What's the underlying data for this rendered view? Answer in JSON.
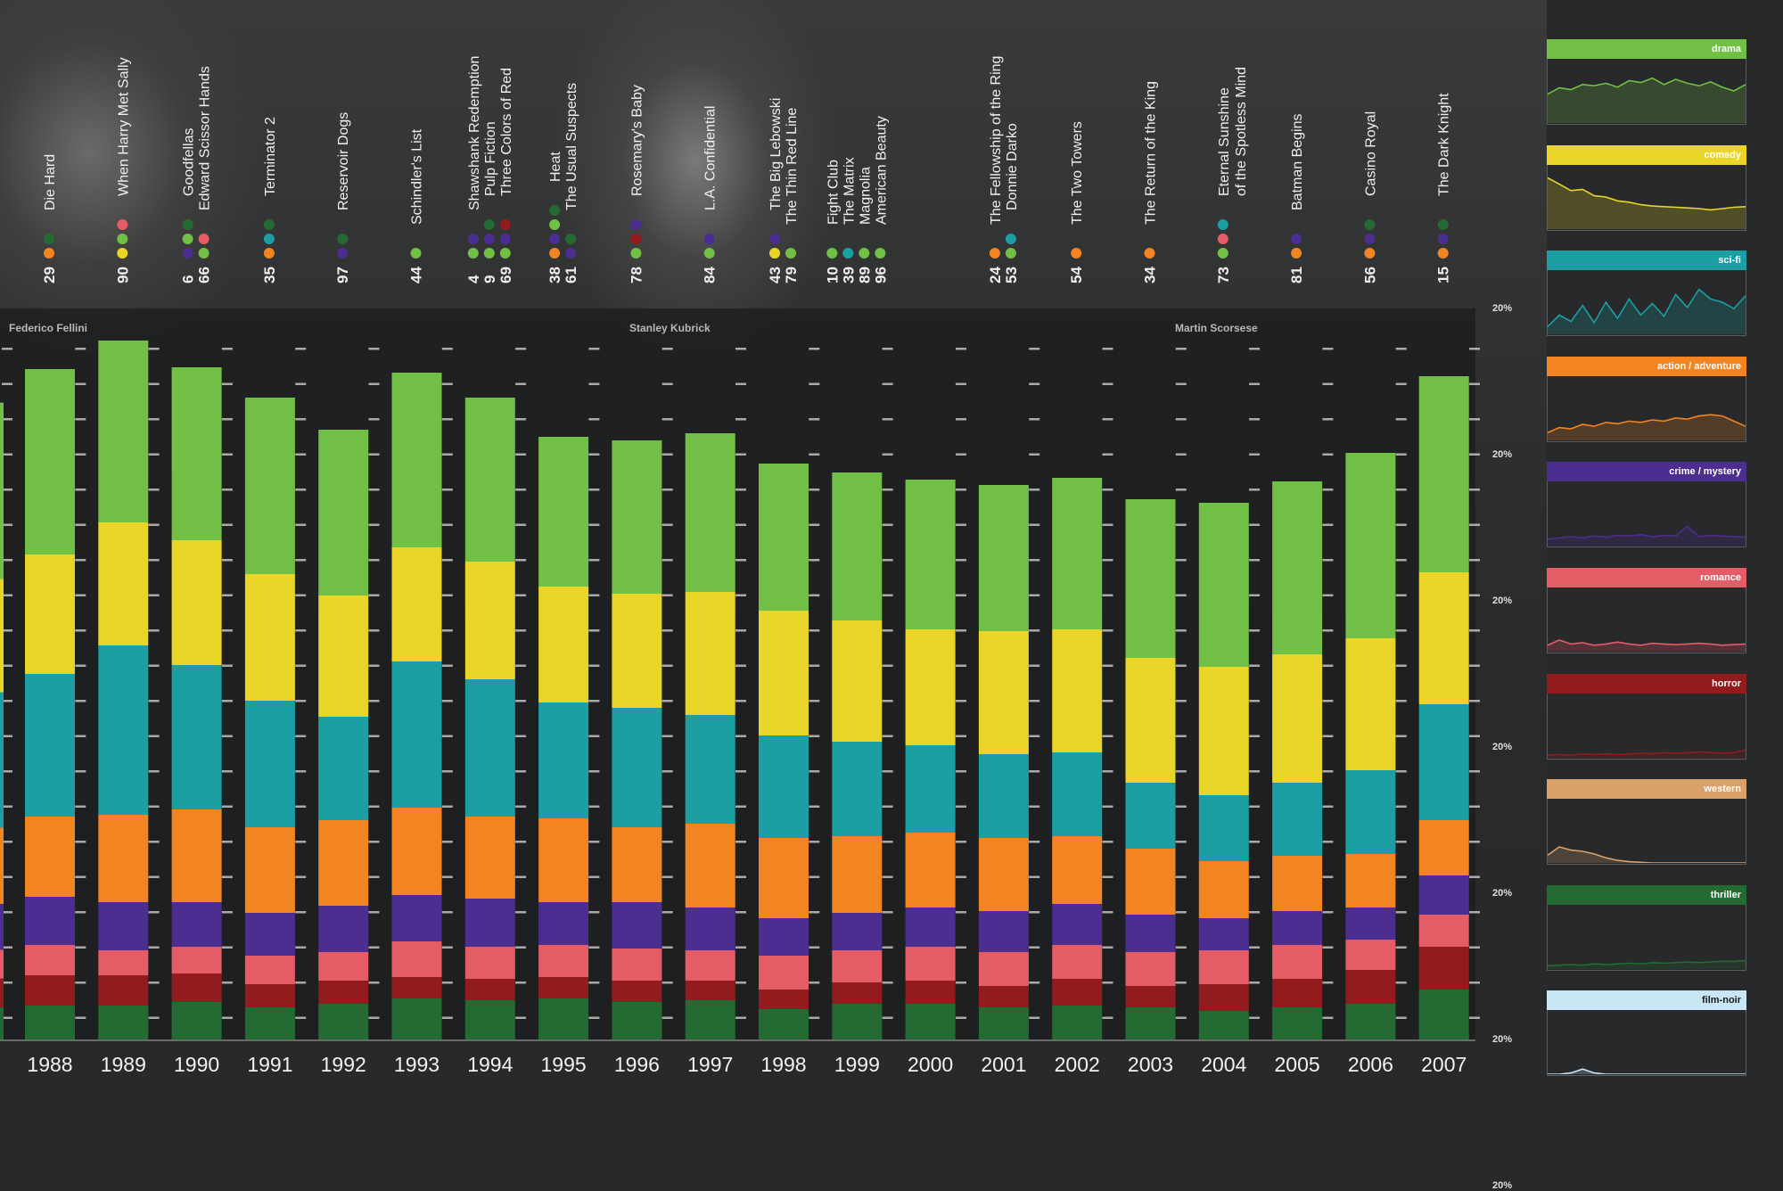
{
  "chart_data": {
    "type": "bar",
    "stacked": true,
    "categories": [
      "1988",
      "1989",
      "1990",
      "1991",
      "1992",
      "1993",
      "1994",
      "1995",
      "1996",
      "1997",
      "1998",
      "1999",
      "2000",
      "2001",
      "2002",
      "2003",
      "2004",
      "2005",
      "2006",
      "2007"
    ],
    "series": [
      {
        "name": "thriller",
        "color": "#236b33",
        "values": [
          38,
          38,
          42,
          36,
          40,
          46,
          44,
          46,
          42,
          44,
          34,
          40,
          40,
          36,
          38,
          36,
          32,
          36,
          40,
          56
        ]
      },
      {
        "name": "horror",
        "color": "#921b1d",
        "values": [
          34,
          34,
          32,
          26,
          26,
          24,
          24,
          24,
          24,
          22,
          22,
          24,
          26,
          24,
          30,
          24,
          30,
          32,
          38,
          48
        ]
      },
      {
        "name": "romance",
        "color": "#e35c66",
        "values": [
          34,
          28,
          30,
          32,
          32,
          40,
          36,
          36,
          36,
          34,
          38,
          36,
          38,
          38,
          38,
          38,
          38,
          38,
          34,
          36
        ]
      },
      {
        "name": "crime / mystery",
        "color": "#4c2d90",
        "values": [
          54,
          54,
          50,
          48,
          52,
          52,
          54,
          48,
          52,
          48,
          42,
          42,
          44,
          46,
          46,
          42,
          36,
          38,
          36,
          44
        ]
      },
      {
        "name": "action / adventure",
        "color": "#f28421",
        "values": [
          90,
          98,
          104,
          96,
          96,
          98,
          92,
          94,
          84,
          94,
          90,
          86,
          84,
          82,
          76,
          74,
          64,
          62,
          60,
          62
        ]
      },
      {
        "name": "sci-fi",
        "color": "#1c9fa2",
        "values": [
          160,
          190,
          162,
          142,
          116,
          164,
          154,
          130,
          134,
          122,
          115,
          106,
          98,
          94,
          94,
          74,
          74,
          82,
          94,
          130
        ]
      },
      {
        "name": "comedy",
        "color": "#e9d528",
        "values": [
          134,
          138,
          140,
          142,
          136,
          128,
          132,
          130,
          128,
          138,
          140,
          136,
          130,
          138,
          138,
          140,
          144,
          144,
          148,
          148
        ]
      },
      {
        "name": "drama",
        "color": "#71bf44",
        "values": [
          208,
          204,
          194,
          198,
          186,
          196,
          184,
          168,
          172,
          178,
          165,
          166,
          168,
          164,
          170,
          178,
          184,
          194,
          208,
          220
        ]
      }
    ],
    "tick_labels": [
      "20%",
      "20%",
      "20%",
      "20%",
      "20%",
      "20%",
      "20%"
    ],
    "annotations": {
      "directors": [
        "Federico Fellini",
        "Stanley Kubrick",
        "Martin Scorsese"
      ],
      "films": [
        {
          "year": "1988",
          "items": [
            {
              "rank": "29",
              "title": "Die Hard",
              "dots": [
                "#f28421",
                "#236b33"
              ]
            }
          ]
        },
        {
          "year": "1989",
          "items": [
            {
              "rank": "90",
              "title": "When Harry Met Sally",
              "dots": [
                "#e9d528",
                "#71bf44",
                "#e35c66"
              ]
            }
          ]
        },
        {
          "year": "1990",
          "items": [
            {
              "rank": "6",
              "title": "Goodfellas",
              "dots": [
                "#4c2d90",
                "#71bf44",
                "#236b33"
              ]
            },
            {
              "rank": "66",
              "title": "Edward Scissor Hands",
              "dots": [
                "#71bf44",
                "#e35c66"
              ]
            }
          ]
        },
        {
          "year": "1991",
          "items": [
            {
              "rank": "35",
              "title": "Terminator 2",
              "dots": [
                "#f28421",
                "#1c9fa2",
                "#236b33"
              ]
            }
          ]
        },
        {
          "year": "1992",
          "items": [
            {
              "rank": "97",
              "title": "Reservoir Dogs",
              "dots": [
                "#4c2d90",
                "#236b33"
              ]
            }
          ]
        },
        {
          "year": "1993",
          "items": [
            {
              "rank": "44",
              "title": "Schindler's List",
              "dots": [
                "#71bf44"
              ]
            }
          ]
        },
        {
          "year": "1994",
          "items": [
            {
              "rank": "4",
              "title": "Shawshank Redemption",
              "dots": [
                "#71bf44",
                "#4c2d90"
              ]
            },
            {
              "rank": "9",
              "title": "Pulp Fiction",
              "dots": [
                "#71bf44",
                "#4c2d90",
                "#236b33"
              ]
            },
            {
              "rank": "69",
              "title": "Three Colors of Red",
              "dots": [
                "#71bf44",
                "#4c2d90",
                "#921b1d"
              ]
            }
          ]
        },
        {
          "year": "1995",
          "items": [
            {
              "rank": "38",
              "title": "Heat",
              "dots": [
                "#f28421",
                "#4c2d90",
                "#71bf44",
                "#236b33"
              ]
            },
            {
              "rank": "61",
              "title": "The Usual Suspects",
              "dots": [
                "#4c2d90",
                "#236b33"
              ]
            }
          ]
        },
        {
          "year": "1996",
          "items": [
            {
              "rank": "78",
              "title": "Rosemary's Baby",
              "dots": [
                "#71bf44",
                "#921b1d",
                "#4c2d90"
              ]
            }
          ]
        },
        {
          "year": "1997",
          "items": [
            {
              "rank": "84",
              "title": "L.A. Confidential",
              "dots": [
                "#71bf44",
                "#4c2d90"
              ]
            }
          ]
        },
        {
          "year": "1998",
          "items": [
            {
              "rank": "43",
              "title": "The Big Lebowski",
              "dots": [
                "#e9d528",
                "#4c2d90"
              ]
            },
            {
              "rank": "79",
              "title": "The Thin Red Line",
              "dots": [
                "#71bf44"
              ]
            }
          ]
        },
        {
          "year": "1999",
          "items": [
            {
              "rank": "10",
              "title": "Fight Club",
              "dots": [
                "#71bf44"
              ]
            },
            {
              "rank": "39",
              "title": "The Matrix",
              "dots": [
                "#1c9fa2"
              ]
            },
            {
              "rank": "89",
              "title": "Magnolia",
              "dots": [
                "#71bf44"
              ]
            },
            {
              "rank": "96",
              "title": "American Beauty",
              "dots": [
                "#71bf44"
              ]
            }
          ]
        },
        {
          "year": "2001",
          "items": [
            {
              "rank": "24",
              "title": "The Fellowship of the Ring",
              "dots": [
                "#f28421"
              ]
            },
            {
              "rank": "53",
              "title": "Donnie Darko",
              "dots": [
                "#71bf44",
                "#1c9fa2"
              ]
            }
          ]
        },
        {
          "year": "2002",
          "items": [
            {
              "rank": "54",
              "title": "The Two Towers",
              "dots": [
                "#f28421"
              ]
            }
          ]
        },
        {
          "year": "2003",
          "items": [
            {
              "rank": "34",
              "title": "The Return of the King",
              "dots": [
                "#f28421"
              ]
            }
          ]
        },
        {
          "year": "2004",
          "items": [
            {
              "rank": "73",
              "title": "Eternal Sunshine\nof the Spotless Mind",
              "dots": [
                "#71bf44",
                "#e35c66",
                "#1c9fa2"
              ]
            }
          ]
        },
        {
          "year": "2005",
          "items": [
            {
              "rank": "81",
              "title": "Batman Begins",
              "dots": [
                "#f28421",
                "#4c2d90"
              ]
            }
          ]
        },
        {
          "year": "2006",
          "items": [
            {
              "rank": "56",
              "title": "Casino Royal",
              "dots": [
                "#f28421",
                "#4c2d90",
                "#236b33"
              ]
            }
          ]
        },
        {
          "year": "2007",
          "items": [
            {
              "rank": "15",
              "title": "The Dark Knight",
              "dots": [
                "#f28421",
                "#4c2d90",
                "#236b33"
              ]
            }
          ]
        }
      ]
    }
  },
  "side_panels": [
    {
      "label": "drama",
      "color": "#71bf44",
      "trend": [
        0.45,
        0.55,
        0.52,
        0.6,
        0.58,
        0.62,
        0.56,
        0.66,
        0.63,
        0.7,
        0.6,
        0.68,
        0.62,
        0.58,
        0.64,
        0.56,
        0.5,
        0.6
      ]
    },
    {
      "label": "comedy",
      "color": "#e9d528",
      "trend": [
        0.8,
        0.7,
        0.6,
        0.62,
        0.52,
        0.5,
        0.44,
        0.42,
        0.38,
        0.36,
        0.35,
        0.34,
        0.33,
        0.32,
        0.3,
        0.32,
        0.34,
        0.35
      ]
    },
    {
      "label": "sci-fi",
      "color": "#1c9fa2",
      "trend": [
        0.12,
        0.3,
        0.2,
        0.45,
        0.18,
        0.5,
        0.25,
        0.55,
        0.3,
        0.48,
        0.28,
        0.62,
        0.42,
        0.7,
        0.55,
        0.5,
        0.4,
        0.6
      ]
    },
    {
      "label": "action / adventure",
      "color": "#f28421",
      "trend": [
        0.12,
        0.2,
        0.18,
        0.25,
        0.22,
        0.28,
        0.26,
        0.3,
        0.28,
        0.32,
        0.3,
        0.35,
        0.33,
        0.38,
        0.4,
        0.38,
        0.3,
        0.22
      ]
    },
    {
      "label": "crime / mystery",
      "color": "#4c2d90",
      "trend": [
        0.1,
        0.12,
        0.14,
        0.12,
        0.15,
        0.13,
        0.16,
        0.15,
        0.17,
        0.14,
        0.16,
        0.15,
        0.3,
        0.14,
        0.16,
        0.15,
        0.14,
        0.13
      ]
    },
    {
      "label": "romance",
      "color": "#e35c66",
      "trend": [
        0.1,
        0.18,
        0.12,
        0.14,
        0.1,
        0.12,
        0.15,
        0.12,
        0.1,
        0.13,
        0.12,
        0.11,
        0.12,
        0.13,
        0.12,
        0.1,
        0.11,
        0.12
      ]
    },
    {
      "label": "horror",
      "color": "#921b1d",
      "trend": [
        0.04,
        0.05,
        0.04,
        0.06,
        0.05,
        0.06,
        0.05,
        0.06,
        0.07,
        0.06,
        0.08,
        0.07,
        0.08,
        0.09,
        0.08,
        0.07,
        0.08,
        0.12
      ]
    },
    {
      "label": "western",
      "color": "#d9a06a",
      "trend": [
        0.12,
        0.25,
        0.2,
        0.18,
        0.14,
        0.08,
        0.04,
        0.02,
        0.01,
        0,
        0,
        0,
        0,
        0,
        0,
        0,
        0,
        0
      ]
    },
    {
      "label": "thriller",
      "color": "#236b33",
      "trend": [
        0.05,
        0.06,
        0.07,
        0.06,
        0.08,
        0.07,
        0.08,
        0.09,
        0.08,
        0.1,
        0.09,
        0.1,
        0.11,
        0.1,
        0.11,
        0.12,
        0.12,
        0.13
      ]
    },
    {
      "label": "film-noir",
      "color": "#c8e6f5",
      "trend": [
        0,
        0,
        0.02,
        0.08,
        0.02,
        0,
        0,
        0,
        0,
        0,
        0,
        0,
        0,
        0,
        0,
        0,
        0,
        0
      ]
    }
  ]
}
